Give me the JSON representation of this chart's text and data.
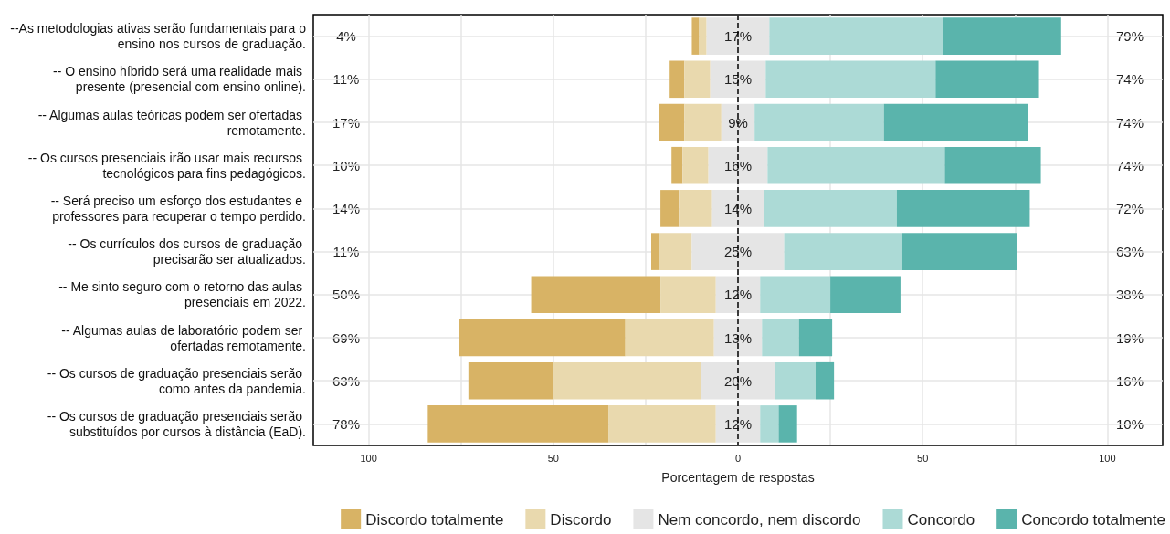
{
  "chart_data": {
    "type": "bar",
    "orientation": "horizontal",
    "xlabel": "Porcentagem de respostas",
    "categories": [
      "--As metodologias ativas serão fundamentais para o ensino nos cursos de graduação.",
      "-- O ensino híbrido será uma realidade mais presente (presencial com ensino online).",
      "-- Algumas aulas teóricas podem ser ofertadas remotamente.",
      "-- Os cursos presenciais irão usar mais recursos tecnológicos para fins pedagógicos.",
      "-- Será preciso um esforço dos estudantes e professores para recuperar o tempo perdido.",
      "-- Os currículos dos cursos de graduação precisarão ser atualizados.",
      "-- Me sinto seguro com o retorno das aulas presenciais em 2022.",
      "-- Algumas aulas de laboratório podem ser ofertadas remotamente.",
      "-- Os cursos de graduação presenciais serão como antes da pandemia.",
      "-- Os cursos de graduação presenciais serão substituídos por cursos à distância (EaD)."
    ],
    "series": [
      {
        "name": "Discordo totalmente",
        "color": "#d8b365",
        "values": [
          2,
          4,
          7,
          3,
          5,
          2,
          35,
          45,
          23,
          49
        ],
        "base": [
          -12.5,
          -18.5,
          -21.5,
          -18,
          -21,
          -23.5,
          -56,
          -75.5,
          -73,
          -84
        ]
      },
      {
        "name": "Discordo",
        "color": "#e9d9ae",
        "values": [
          2,
          7,
          10,
          7,
          9,
          9,
          15,
          24,
          40,
          29
        ],
        "base": [
          -10.5,
          -14.5,
          -14.5,
          -15,
          -16,
          -21.5,
          -21,
          -30.5,
          -50,
          -35
        ]
      },
      {
        "name": "Nem concordo, nem discordo",
        "color": "#e5e5e5",
        "values": [
          17,
          15,
          9,
          16,
          14,
          25,
          12,
          13,
          20,
          12
        ],
        "base": [
          -8.5,
          -7.5,
          -4.5,
          -8,
          -7,
          -12.5,
          -6,
          -6.5,
          -10,
          -6
        ],
        "value_labels": [
          "17%",
          "15%",
          "9%",
          "16%",
          "14%",
          "25%",
          "12%",
          "13%",
          "20%",
          "12%"
        ]
      },
      {
        "name": "Concordo",
        "color": "#acdad6",
        "values": [
          47,
          46,
          35,
          48,
          36,
          32,
          19,
          10,
          11,
          5
        ],
        "base": [
          8.5,
          7.5,
          4.5,
          8,
          7,
          12.5,
          6,
          6.5,
          10,
          6
        ]
      },
      {
        "name": "Concordo totalmente",
        "color": "#5ab4ac",
        "values": [
          32,
          28,
          39,
          26,
          36,
          31,
          19,
          9,
          5,
          5
        ],
        "base": [
          55.5,
          53.5,
          39.5,
          56,
          43,
          44.5,
          25,
          16.5,
          21,
          11
        ]
      }
    ],
    "annotations": [
      "4%",
      "11%",
      "17%",
      "10%",
      "14%",
      "11%",
      "50%",
      "69%",
      "63%",
      "78%",
      "79%",
      "74%",
      "74%",
      "74%",
      "72%",
      "63%",
      "38%",
      "19%",
      "16%",
      "10%"
    ],
    "xlim": [
      -115,
      115
    ],
    "xticks": [
      {
        "value": -100,
        "label": "100"
      },
      {
        "value": -75,
        "label": null
      },
      {
        "value": -50,
        "label": "50"
      },
      {
        "value": -25,
        "label": null
      },
      0,
      {
        "value": 25,
        "label": null
      },
      50,
      {
        "value": 75,
        "label": null
      },
      100
    ],
    "ref_lines": [
      {
        "axis": "x",
        "value": 0,
        "color": "#000000",
        "line_style": "dashed"
      }
    ],
    "grid": true,
    "legend": "bottom"
  }
}
